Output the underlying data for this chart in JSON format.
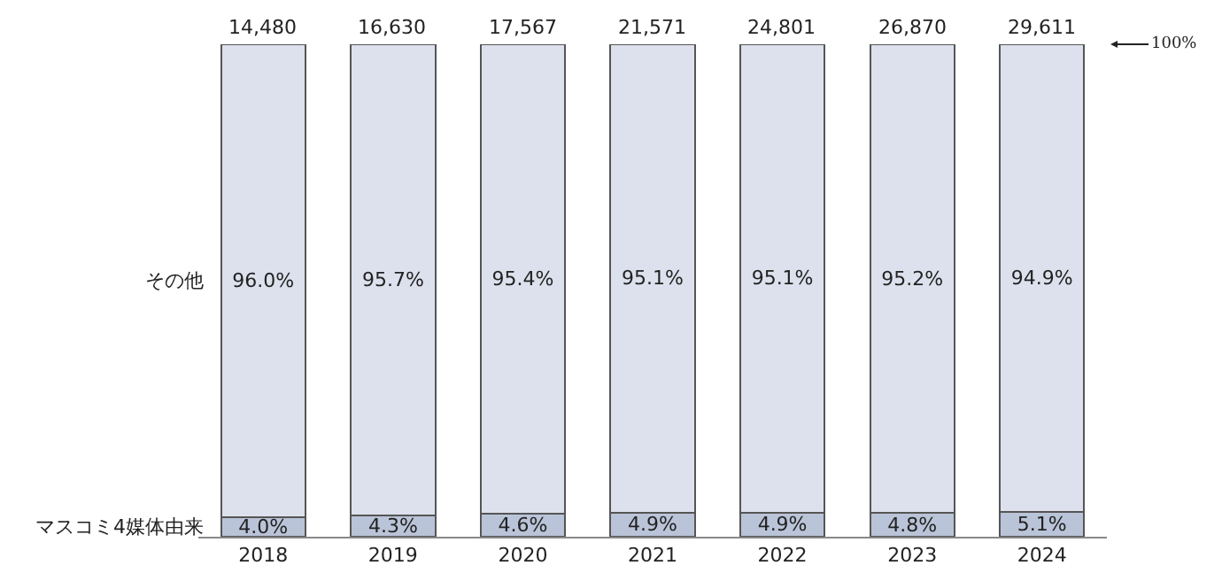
{
  "chart_data": {
    "type": "bar",
    "stacked": true,
    "categories": [
      "2018",
      "2019",
      "2020",
      "2021",
      "2022",
      "2023",
      "2024"
    ],
    "series": [
      {
        "name": "マスコミ4媒体由来",
        "color": "#bac4d8",
        "values": [
          4.0,
          4.3,
          4.6,
          4.9,
          4.9,
          4.8,
          5.1
        ],
        "value_labels": [
          "4.0%",
          "4.3%",
          "4.6%",
          "4.9%",
          "4.9%",
          "4.8%",
          "5.1%"
        ]
      },
      {
        "name": "その他",
        "color": "#dde1ed",
        "values": [
          96.0,
          95.7,
          95.4,
          95.1,
          95.1,
          95.2,
          94.9
        ],
        "value_labels": [
          "96.0%",
          "95.7%",
          "95.4%",
          "95.1%",
          "95.1%",
          "95.2%",
          "94.9%"
        ]
      }
    ],
    "annotations": [
      {
        "text": "14,480",
        "x": "2018",
        "y": 100
      },
      {
        "text": "16,630",
        "x": "2019",
        "y": 100
      },
      {
        "text": "17,567",
        "x": "2020",
        "y": 100
      },
      {
        "text": "21,571",
        "x": "2021",
        "y": 100
      },
      {
        "text": "24,801",
        "x": "2022",
        "y": 100
      },
      {
        "text": "26,870",
        "x": "2023",
        "y": 100
      },
      {
        "text": "29,611",
        "x": "2024",
        "y": 100
      }
    ],
    "ref_lines": [
      {
        "axis": "y",
        "value": 100,
        "label": "100%"
      }
    ],
    "legend": false
  }
}
